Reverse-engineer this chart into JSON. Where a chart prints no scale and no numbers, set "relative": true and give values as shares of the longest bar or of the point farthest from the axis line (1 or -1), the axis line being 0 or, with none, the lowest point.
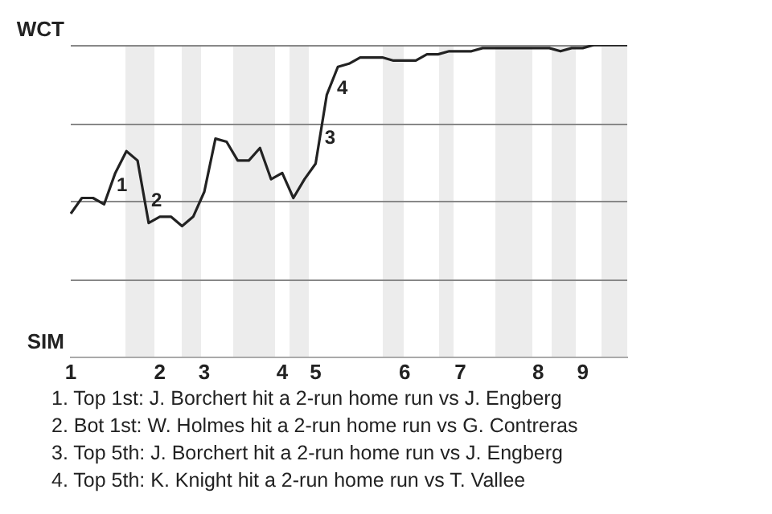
{
  "chart_data": {
    "type": "line",
    "relative": true,
    "categories": [
      "1",
      null,
      null,
      null,
      null,
      null,
      null,
      null,
      "2",
      null,
      null,
      null,
      "3",
      null,
      null,
      null,
      null,
      null,
      null,
      "4",
      null,
      null,
      "5",
      null,
      null,
      null,
      null,
      null,
      null,
      null,
      "6",
      null,
      null,
      null,
      null,
      "7",
      null,
      null,
      null,
      null,
      null,
      null,
      "8",
      null,
      null,
      null,
      "9",
      null,
      null,
      null,
      null
    ],
    "series": [
      {
        "color": "#222222",
        "values": [
          0.46,
          0.51,
          0.51,
          0.49,
          0.59,
          0.66,
          0.63,
          0.43,
          0.45,
          0.45,
          0.42,
          0.45,
          0.53,
          0.7,
          0.69,
          0.63,
          0.63,
          0.67,
          0.57,
          0.59,
          0.51,
          0.57,
          0.62,
          0.84,
          0.93,
          0.94,
          0.96,
          0.96,
          0.96,
          0.95,
          0.95,
          0.95,
          0.97,
          0.97,
          0.98,
          0.98,
          0.98,
          0.99,
          0.99,
          0.99,
          0.99,
          0.99,
          0.99,
          0.99,
          0.98,
          0.99,
          0.99,
          1.0,
          1.0,
          1.0,
          1.0
        ]
      }
    ],
    "marker": "none",
    "line_style": "solid",
    "ref_lines": [
      {
        "axis": "y",
        "value": 0.25,
        "color": "#888888"
      },
      {
        "axis": "y",
        "value": 0.5,
        "color": "#888888"
      },
      {
        "axis": "y",
        "value": 0.75,
        "color": "#888888"
      },
      {
        "axis": "y",
        "value": 1,
        "color": "#888888"
      }
    ],
    "annotations": [
      "WCT",
      "SIM",
      "1",
      "2",
      "3",
      "4",
      "1. Top 1st: J. Borchert hit a 2-run home run vs J. Engberg",
      "2. Bot 1st: W. Holmes hit a 2-run home run vs G. Contreras",
      "3. Top 5th: J. Borchert hit a 2-run home run vs J. Engberg",
      "4. Top 5th: K. Knight hit a 2-run home run vs T. Vallee"
    ]
  }
}
